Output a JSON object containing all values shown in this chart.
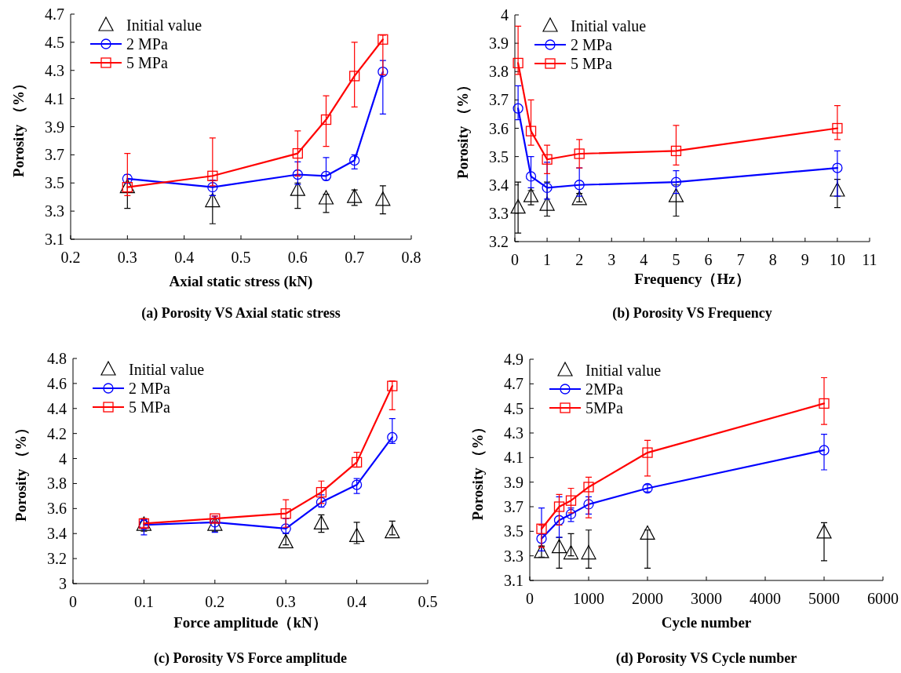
{
  "chart_data": [
    {
      "type": "line",
      "title": "(a) Porosity VS Axial static stress",
      "xlabel": "Axial static stress (kN)",
      "ylabel": "Porosity （%）",
      "x": [
        0.3,
        0.45,
        0.6,
        0.65,
        0.7,
        0.75
      ],
      "xlim": [
        0.2,
        0.8
      ],
      "xticks": [
        0.2,
        0.3,
        0.4,
        0.5,
        0.6,
        0.7,
        0.8
      ],
      "ylim": [
        3.1,
        4.7
      ],
      "yticks": [
        3.1,
        3.3,
        3.5,
        3.7,
        3.9,
        4.1,
        4.3,
        4.5,
        4.7
      ],
      "legend": "top left",
      "series": [
        {
          "name": "Initial value",
          "type": "scatter",
          "marker": "triangle",
          "color": "#000000",
          "values": [
            3.47,
            3.37,
            3.45,
            3.39,
            3.4,
            3.38
          ],
          "errors": [
            [
              3.32,
              3.5
            ],
            [
              3.21,
              3.41
            ],
            [
              3.32,
              3.5
            ],
            [
              3.29,
              3.42
            ],
            [
              3.34,
              3.45
            ],
            [
              3.28,
              3.48
            ]
          ]
        },
        {
          "name": "2 MPa",
          "type": "line",
          "marker": "circle",
          "color": "#0000ff",
          "values": [
            3.53,
            3.47,
            3.56,
            3.55,
            3.66,
            4.29
          ],
          "errors": [
            [
              3.5,
              3.56
            ],
            [
              3.41,
              3.52
            ],
            [
              3.49,
              3.65
            ],
            [
              3.52,
              3.68
            ],
            [
              3.6,
              3.7
            ],
            [
              3.99,
              4.37
            ]
          ]
        },
        {
          "name": "5 MPa",
          "type": "line",
          "marker": "square",
          "color": "#ff0000",
          "values": [
            3.47,
            3.55,
            3.71,
            3.95,
            4.26,
            4.52
          ],
          "errors": [
            [
              3.41,
              3.71
            ],
            [
              3.48,
              3.82
            ],
            [
              3.55,
              3.87
            ],
            [
              3.76,
              4.12
            ],
            [
              4.04,
              4.5
            ],
            [
              4.27,
              4.55
            ]
          ]
        }
      ]
    },
    {
      "type": "line",
      "title": "(b) Porosity VS Frequency",
      "xlabel": "Frequency（Hz）",
      "ylabel": "Porosity （%）",
      "x": [
        0.1,
        0.5,
        1,
        2,
        5,
        10
      ],
      "xlim": [
        0,
        11
      ],
      "xticks": [
        0,
        1,
        2,
        3,
        4,
        5,
        6,
        7,
        8,
        9,
        10,
        11
      ],
      "ylim": [
        3.2,
        4
      ],
      "yticks": [
        3.2,
        3.3,
        3.4,
        3.5,
        3.6,
        3.7,
        3.8,
        3.9,
        4
      ],
      "legend": "top left",
      "series": [
        {
          "name": "Initial value",
          "type": "scatter",
          "marker": "triangle",
          "color": "#000000",
          "values": [
            3.32,
            3.36,
            3.33,
            3.35,
            3.36,
            3.38
          ],
          "errors": [
            [
              3.23,
              3.41
            ],
            [
              3.33,
              3.38
            ],
            [
              3.29,
              3.41
            ],
            [
              3.34,
              3.37
            ],
            [
              3.29,
              3.4
            ],
            [
              3.32,
              3.42
            ]
          ]
        },
        {
          "name": "2 MPa",
          "type": "line",
          "marker": "circle",
          "color": "#0000ff",
          "values": [
            3.67,
            3.43,
            3.39,
            3.4,
            3.41,
            3.46
          ],
          "errors": [
            [
              3.63,
              3.75
            ],
            [
              3.39,
              3.5
            ],
            [
              3.35,
              3.48
            ],
            [
              3.36,
              3.46
            ],
            [
              3.37,
              3.45
            ],
            [
              3.36,
              3.52
            ]
          ]
        },
        {
          "name": "5 MPa",
          "type": "line",
          "marker": "square",
          "color": "#ff0000",
          "values": [
            3.83,
            3.59,
            3.49,
            3.51,
            3.52,
            3.6
          ],
          "errors": [
            [
              3.79,
              3.96
            ],
            [
              3.54,
              3.7
            ],
            [
              3.44,
              3.54
            ],
            [
              3.46,
              3.56
            ],
            [
              3.47,
              3.61
            ],
            [
              3.56,
              3.68
            ]
          ]
        }
      ]
    },
    {
      "type": "line",
      "title": "(c) Porosity VS Force amplitude",
      "xlabel": "Force amplitude（kN）",
      "ylabel": "Porosity （%）",
      "x": [
        0.1,
        0.2,
        0.3,
        0.35,
        0.4,
        0.45
      ],
      "xlim": [
        0,
        0.5
      ],
      "xticks": [
        0,
        0.1,
        0.2,
        0.3,
        0.4,
        0.5
      ],
      "ylim": [
        3,
        4.8
      ],
      "yticks": [
        3,
        3.2,
        3.4,
        3.6,
        3.8,
        4,
        4.2,
        4.4,
        4.6,
        4.8
      ],
      "legend": "top left",
      "series": [
        {
          "name": "Initial value",
          "type": "scatter",
          "marker": "triangle",
          "color": "#000000",
          "values": [
            3.47,
            3.47,
            3.33,
            3.48,
            3.38,
            3.41
          ],
          "errors": [
            [
              3.42,
              3.51
            ],
            [
              3.42,
              3.52
            ],
            [
              3.31,
              3.4
            ],
            [
              3.41,
              3.55
            ],
            [
              3.32,
              3.49
            ],
            [
              3.39,
              3.5
            ]
          ]
        },
        {
          "name": "2 MPa",
          "type": "line",
          "marker": "circle",
          "color": "#0000ff",
          "values": [
            3.47,
            3.49,
            3.44,
            3.65,
            3.79,
            4.17
          ],
          "errors": [
            [
              3.39,
              3.51
            ],
            [
              3.41,
              3.54
            ],
            [
              3.4,
              3.52
            ],
            [
              3.61,
              3.71
            ],
            [
              3.72,
              3.84
            ],
            [
              4.12,
              4.32
            ]
          ]
        },
        {
          "name": "5 MPa",
          "type": "line",
          "marker": "square",
          "color": "#ff0000",
          "values": [
            3.48,
            3.52,
            3.56,
            3.73,
            3.97,
            4.58
          ],
          "errors": [
            [
              3.45,
              3.52
            ],
            [
              3.49,
              3.54
            ],
            [
              3.45,
              3.67
            ],
            [
              3.64,
              3.82
            ],
            [
              3.93,
              4.05
            ],
            [
              4.39,
              4.62
            ]
          ]
        }
      ]
    },
    {
      "type": "line",
      "title": "(d) Porosity VS Cycle number",
      "xlabel": "Cycle number",
      "ylabel": "Porosity （%）",
      "x": [
        200,
        500,
        700,
        1000,
        2000,
        5000
      ],
      "xlim": [
        0,
        6000
      ],
      "xticks": [
        0,
        1000,
        2000,
        3000,
        4000,
        5000,
        6000
      ],
      "ylim": [
        3.1,
        4.9
      ],
      "yticks": [
        3.1,
        3.3,
        3.5,
        3.7,
        3.9,
        4.1,
        4.3,
        4.5,
        4.7,
        4.9
      ],
      "legend": "top left",
      "series": [
        {
          "name": "Initial value",
          "type": "scatter",
          "marker": "triangle",
          "color": "#000000",
          "values": [
            3.33,
            3.37,
            3.32,
            3.32,
            3.48,
            3.49
          ],
          "errors": [
            [
              3.29,
              3.38
            ],
            [
              3.2,
              3.45
            ],
            [
              3.3,
              3.48
            ],
            [
              3.2,
              3.51
            ],
            [
              3.2,
              3.51
            ],
            [
              3.26,
              3.57
            ]
          ]
        },
        {
          "name": "2MPa",
          "type": "line",
          "marker": "circle",
          "color": "#0000ff",
          "values": [
            3.44,
            3.59,
            3.64,
            3.72,
            3.85,
            4.16
          ],
          "errors": [
            [
              3.34,
              3.69
            ],
            [
              3.45,
              3.78
            ],
            [
              3.58,
              3.69
            ],
            [
              3.64,
              3.78
            ],
            [
              3.82,
              3.88
            ],
            [
              4.0,
              4.29
            ]
          ]
        },
        {
          "name": "5MPa",
          "type": "line",
          "marker": "square",
          "color": "#ff0000",
          "values": [
            3.52,
            3.7,
            3.75,
            3.86,
            4.14,
            4.54
          ],
          "errors": [
            [
              3.37,
              3.55
            ],
            [
              3.55,
              3.8
            ],
            [
              3.65,
              3.85
            ],
            [
              3.61,
              3.94
            ],
            [
              3.95,
              4.24
            ],
            [
              4.37,
              4.75
            ]
          ]
        }
      ]
    }
  ]
}
